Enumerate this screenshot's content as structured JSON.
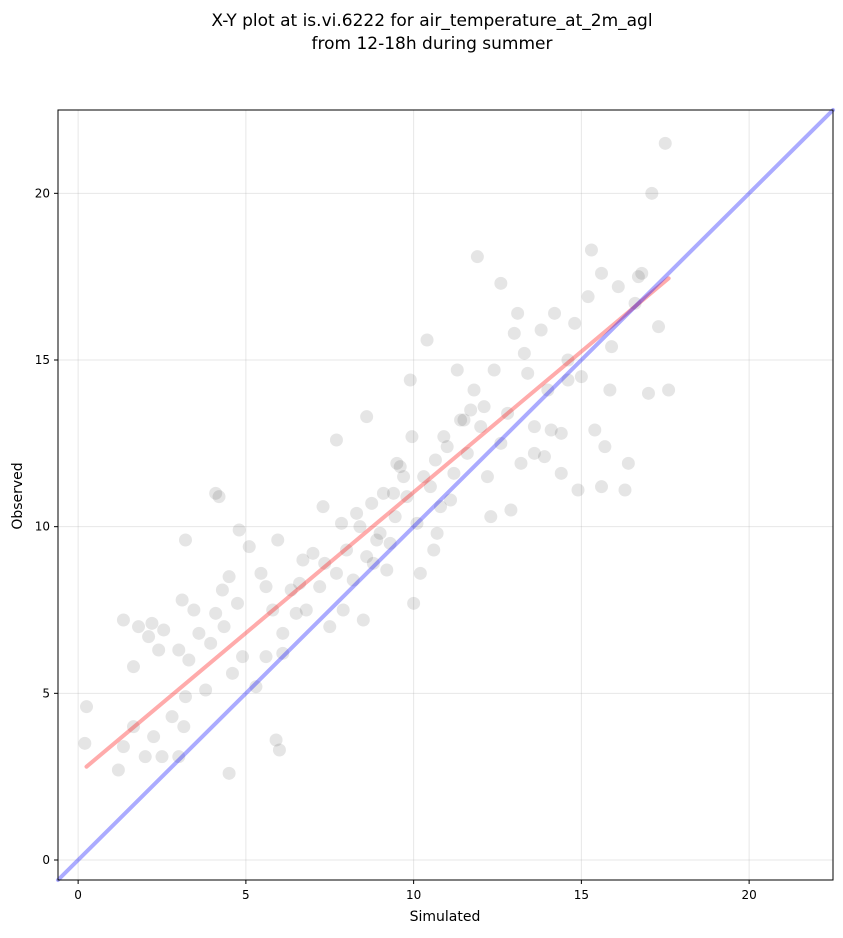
{
  "chart_data": {
    "type": "scatter",
    "title": "X-Y plot at is.vi.6222 for air_temperature_at_2m_agl",
    "subtitle": "from 12-18h during summer",
    "xlabel": "Simulated",
    "ylabel": "Observed",
    "xlim": [
      -0.6,
      22.5
    ],
    "ylim": [
      -0.6,
      22.5
    ],
    "xticks": [
      0,
      5,
      10,
      15,
      20
    ],
    "yticks": [
      0,
      5,
      10,
      15,
      20
    ],
    "grid": true,
    "colors": {
      "points": "#000000",
      "fit": "#ff0000",
      "one_to_one": "#0000ff",
      "grid": "#b0b0b0"
    },
    "series": [
      {
        "kind": "points",
        "x": [
          0.25,
          0.2,
          1.35,
          1.2,
          1.35,
          1.65,
          1.65,
          1.8,
          2.0,
          2.2,
          2.25,
          2.4,
          2.55,
          2.5,
          2.1,
          2.8,
          3.0,
          3.1,
          3.15,
          3.2,
          3.3,
          3.45,
          3.6,
          3.8,
          3.95,
          4.1,
          4.2,
          4.3,
          4.35,
          4.5,
          4.6,
          4.75,
          4.9,
          5.1,
          5.3,
          5.45,
          5.6,
          5.8,
          5.95,
          6.1,
          6.35,
          6.5,
          6.6,
          6.8,
          7.0,
          7.2,
          7.35,
          7.5,
          7.7,
          7.85,
          8.0,
          8.2,
          8.4,
          8.6,
          8.75,
          8.9,
          9.1,
          9.3,
          9.45,
          9.6,
          9.8,
          9.95,
          10.1,
          10.3,
          10.5,
          10.65,
          10.8,
          11.0,
          11.2,
          11.4,
          11.6,
          11.8,
          12.0,
          12.2,
          12.4,
          12.6,
          12.8,
          13.0,
          13.2,
          13.4,
          13.6,
          13.8,
          14.0,
          14.2,
          14.4,
          14.6,
          14.8,
          15.0,
          15.2,
          15.4,
          15.6,
          15.85,
          16.1,
          16.4,
          16.7,
          17.0,
          17.3,
          17.6,
          17.5,
          17.1,
          16.8,
          15.3,
          4.5,
          5.9,
          6.0,
          3.2,
          9.9,
          10.4,
          4.1,
          3.0,
          11.9,
          13.1,
          14.9,
          15.6,
          15.7,
          16.3,
          14.6,
          14.4,
          6.1,
          7.7,
          8.6,
          9.2,
          10.0,
          10.7,
          11.3,
          12.6,
          9.4,
          8.3,
          7.9,
          10.9,
          11.7,
          12.3,
          13.6,
          8.8,
          9.7,
          10.2,
          11.1,
          12.1,
          13.3,
          14.1,
          9.0,
          9.5,
          10.6,
          11.5,
          8.5,
          7.3,
          6.7,
          5.6,
          4.8,
          12.9,
          13.9,
          15.9,
          16.6
        ],
        "y": [
          4.6,
          3.5,
          3.4,
          2.7,
          7.2,
          4.0,
          5.8,
          7.0,
          3.1,
          7.1,
          3.7,
          6.3,
          6.9,
          3.1,
          6.7,
          4.3,
          6.3,
          7.8,
          4.0,
          4.9,
          6.0,
          7.5,
          6.8,
          5.1,
          6.5,
          7.4,
          10.9,
          8.1,
          7.0,
          8.5,
          5.6,
          7.7,
          6.1,
          9.4,
          5.2,
          8.6,
          6.1,
          7.5,
          9.6,
          6.8,
          8.1,
          7.4,
          8.3,
          7.5,
          9.2,
          8.2,
          8.9,
          7.0,
          8.6,
          10.1,
          9.3,
          8.4,
          10.0,
          9.1,
          10.7,
          9.6,
          11.0,
          9.5,
          10.3,
          11.8,
          10.9,
          12.7,
          10.1,
          11.5,
          11.2,
          12.0,
          10.6,
          12.4,
          11.6,
          13.2,
          12.2,
          14.1,
          13.0,
          11.5,
          14.7,
          12.5,
          13.4,
          15.8,
          11.9,
          14.6,
          13.0,
          15.9,
          14.1,
          16.4,
          12.8,
          15.0,
          16.1,
          14.5,
          16.9,
          12.9,
          17.6,
          14.1,
          17.2,
          11.9,
          17.5,
          14.0,
          16.0,
          14.1,
          21.5,
          20.0,
          17.6,
          18.3,
          2.6,
          3.6,
          3.3,
          9.6,
          14.4,
          15.6,
          11.0,
          3.1,
          18.1,
          16.4,
          11.1,
          11.2,
          12.4,
          11.1,
          14.4,
          11.6,
          6.2,
          12.6,
          13.3,
          8.7,
          7.7,
          9.8,
          14.7,
          17.3,
          11.0,
          10.4,
          7.5,
          12.7,
          13.5,
          10.3,
          12.2,
          8.9,
          11.5,
          8.6,
          10.8,
          13.6,
          15.2,
          12.9,
          9.8,
          11.9,
          9.3,
          13.2,
          7.2,
          10.6,
          9.0,
          8.2,
          9.9,
          10.5,
          12.1,
          15.4,
          16.7
        ]
      },
      {
        "kind": "line",
        "role": "fit",
        "x": [
          0.25,
          17.6
        ],
        "y": [
          2.8,
          17.45
        ]
      },
      {
        "kind": "line",
        "role": "one_to_one",
        "x": [
          -0.6,
          22.5
        ],
        "y": [
          -0.6,
          22.5
        ]
      }
    ]
  }
}
